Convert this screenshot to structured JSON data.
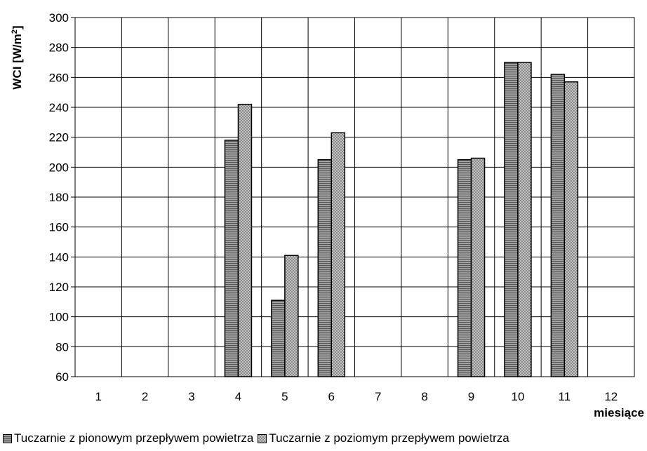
{
  "chart_data": {
    "type": "bar",
    "categories": [
      "1",
      "2",
      "3",
      "4",
      "5",
      "6",
      "7",
      "8",
      "9",
      "10",
      "11",
      "12"
    ],
    "series": [
      {
        "name": "Tuczarnie z pionowym przepływem powietrza",
        "values": [
          null,
          null,
          null,
          218,
          111,
          205,
          null,
          null,
          205,
          270,
          262,
          null
        ]
      },
      {
        "name": "Tuczarnie z poziomym przepływem powietrza",
        "values": [
          null,
          null,
          null,
          242,
          141,
          223,
          null,
          null,
          206,
          270,
          257,
          null
        ]
      }
    ],
    "ylabel_main": "WCI [W/m",
    "ylabel_sup": "2",
    "ylabel_end": "]",
    "xlabel": "miesiące",
    "ylim": [
      60,
      300
    ],
    "yticks": [
      60,
      80,
      100,
      120,
      140,
      160,
      180,
      200,
      220,
      240,
      260,
      280,
      300
    ],
    "grid": true,
    "legend_position": "bottom",
    "colors": {
      "series1_fill": "#8a8a8a",
      "series2_fill": "#c8c8c8",
      "grid": "#000000"
    }
  }
}
